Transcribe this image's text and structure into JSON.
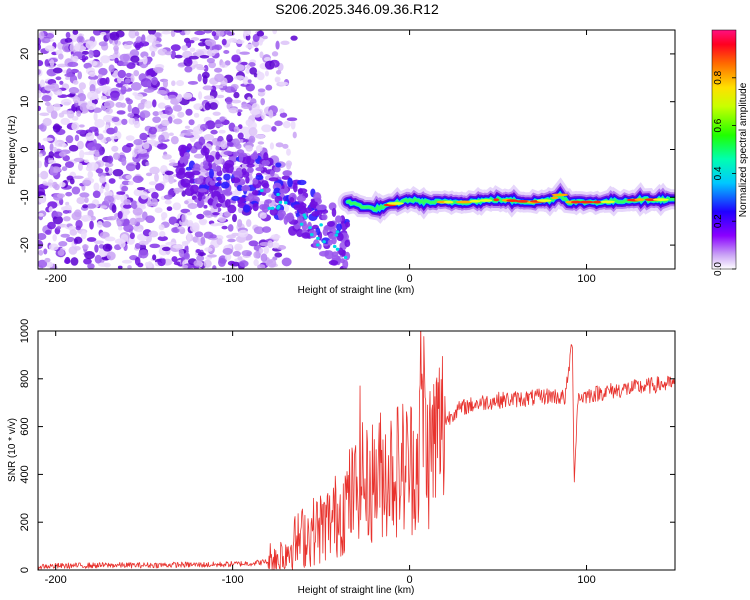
{
  "page_title": "S206.2025.346.09.36.R12",
  "colors": {
    "snr_line": "#e8322d",
    "speckle_base": "#7b1fe0",
    "axis": "#000000"
  },
  "chart_data": [
    {
      "type": "heatmap",
      "title": "S206.2025.346.09.36.R12",
      "xlabel": "Height of straight line (km)",
      "ylabel": "Frequency (Hz)",
      "xlim": [
        -210,
        150
      ],
      "ylim": [
        -25,
        25
      ],
      "xticks": [
        -200,
        -100,
        0,
        100
      ],
      "xtick_labels": [
        "-200",
        "-100",
        "0",
        "100"
      ],
      "yticks": [
        -20,
        -10,
        0,
        10,
        20
      ],
      "ytick_labels": [
        "-20",
        "-10",
        "0",
        "10",
        "20"
      ],
      "colorbar": {
        "label": "Normalized spectral amplitude",
        "range": [
          0,
          1
        ],
        "ticks": [
          "0.0",
          "0.2",
          "0.4",
          "0.6",
          "0.8"
        ],
        "placement": "right"
      },
      "features": {
        "noise_region_x": [
          -210,
          -85
        ],
        "transition_region_x": [
          -85,
          -35
        ],
        "carrier_line": {
          "x": [
            -35,
            -20,
            -10,
            0,
            10,
            20,
            30,
            50,
            70,
            80,
            85,
            90,
            100,
            110,
            130,
            150
          ],
          "frequency": [
            -11,
            -12.5,
            -11.5,
            -10.5,
            -11,
            -11,
            -11,
            -10.5,
            -11,
            -10.5,
            -9.5,
            -11,
            -11,
            -11,
            -10.5,
            -10.5
          ]
        }
      },
      "grid": false
    },
    {
      "type": "line",
      "xlabel": "Height of straight line (km)",
      "ylabel": "SNR (10 * v/v)",
      "xlim": [
        -210,
        150
      ],
      "ylim": [
        0,
        1000
      ],
      "xticks": [
        -200,
        -100,
        0,
        100
      ],
      "xtick_labels": [
        "-200",
        "-100",
        "0",
        "100"
      ],
      "yticks": [
        0,
        200,
        400,
        600,
        800,
        1000
      ],
      "ytick_labels": [
        "0",
        "200",
        "400",
        "600",
        "800",
        "1000"
      ],
      "grid": false,
      "series": [
        {
          "x": [
            -210,
            -190,
            -170,
            -150,
            -130,
            -110,
            -100,
            -90,
            -80,
            -75,
            -70,
            -65,
            -60,
            -55,
            -50,
            -45,
            -40,
            -35,
            -30,
            -28,
            -25,
            -20,
            -15,
            -10,
            -5,
            0,
            5,
            7,
            10,
            15,
            20,
            25,
            30,
            40,
            50,
            60,
            70,
            80,
            88,
            92,
            93,
            95,
            100,
            110,
            120,
            130,
            140,
            150
          ],
          "y": [
            15,
            18,
            20,
            20,
            22,
            22,
            25,
            28,
            35,
            55,
            80,
            110,
            140,
            160,
            180,
            200,
            240,
            290,
            330,
            460,
            340,
            380,
            410,
            420,
            430,
            440,
            460,
            820,
            470,
            560,
            620,
            660,
            680,
            700,
            710,
            715,
            720,
            730,
            720,
            960,
            350,
            720,
            730,
            745,
            755,
            765,
            775,
            780
          ]
        }
      ]
    }
  ]
}
